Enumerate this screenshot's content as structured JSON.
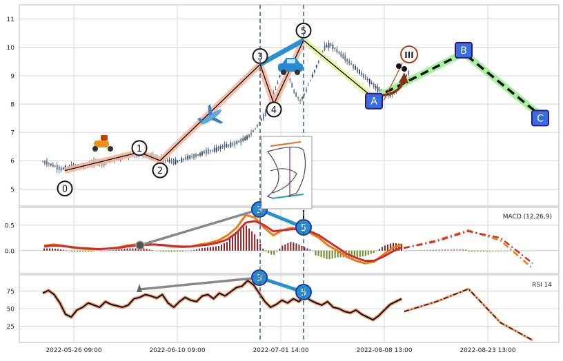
{
  "chart_data": [
    {
      "type": "candlestick",
      "panel": "price",
      "ylim": [
        4.4,
        11.5
      ],
      "y_ticks": [
        5,
        6,
        7,
        8,
        9,
        10,
        11
      ],
      "x_tick_labels": [
        "2022-05-26 09:00",
        "2022-06-10 09:00",
        "2022-07-01 14:00",
        "2022-08-08 13:00",
        "2022-08-23 13:00"
      ],
      "wave_labels": [
        "0",
        "1",
        "2",
        "3",
        "4",
        "5",
        "A",
        "B",
        "C"
      ],
      "wave_points": [
        5.65,
        6.3,
        6.0,
        9.4,
        8.0,
        10.25,
        8.2,
        9.8,
        7.6
      ],
      "roman_label": "III",
      "icons": [
        "scooter-icon",
        "airplane-icon",
        "car-icon"
      ],
      "price_approx": [
        5.95,
        5.9,
        5.8,
        5.7,
        5.75,
        5.8,
        5.85,
        5.8,
        5.9,
        5.95,
        5.9,
        6.0,
        6.05,
        6.1,
        6.15,
        6.2,
        6.25,
        6.2,
        6.15,
        6.1,
        6.05,
        6.0,
        5.95,
        6.0,
        6.1,
        6.15,
        6.2,
        6.3,
        6.35,
        6.4,
        6.5,
        6.55,
        6.6,
        6.7,
        6.8,
        7.0,
        7.3,
        7.6,
        8.0,
        8.6,
        9.3,
        9.0,
        8.4,
        8.1,
        8.5,
        9.0,
        9.5,
        10.0,
        10.1,
        9.9,
        9.7,
        9.5,
        9.3,
        9.1,
        8.9,
        8.7,
        8.5,
        8.4,
        8.3,
        8.5,
        8.8,
        9.1
      ]
    },
    {
      "type": "line",
      "panel": "macd",
      "indicator_label": "MACD (12,26,9)",
      "ylim": [
        -0.45,
        0.85
      ],
      "y_ticks": [
        "0.5",
        "0.0"
      ],
      "y_tick_values": [
        0.5,
        0.0
      ],
      "series": [
        {
          "values": [
            0.1,
            0.12,
            0.1,
            0.06,
            0.04,
            0.03,
            0.03,
            0.04,
            0.06,
            0.1,
            0.12,
            0.13,
            0.12,
            0.1,
            0.08,
            0.07,
            0.08,
            0.12,
            0.15,
            0.2,
            0.3,
            0.45,
            0.7,
            0.65,
            0.45,
            0.3,
            0.4,
            0.45,
            0.42,
            0.35,
            0.25,
            0.1,
            0.0,
            -0.12,
            -0.2,
            -0.25,
            -0.22,
            -0.08,
            0.05,
            0.12
          ]
        },
        {
          "values": [
            0.08,
            0.1,
            0.09,
            0.07,
            0.05,
            0.04,
            0.03,
            0.04,
            0.05,
            0.08,
            0.1,
            0.11,
            0.12,
            0.11,
            0.09,
            0.08,
            0.08,
            0.1,
            0.12,
            0.16,
            0.22,
            0.35,
            0.55,
            0.58,
            0.5,
            0.38,
            0.4,
            0.42,
            0.42,
            0.38,
            0.3,
            0.18,
            0.06,
            -0.06,
            -0.14,
            -0.2,
            -0.2,
            -0.12,
            -0.02,
            0.06
          ]
        }
      ],
      "projection": [
        {
          "values": [
            0.05,
            0.2,
            0.4,
            0.2,
            -0.35
          ]
        },
        {
          "values": [
            0.05,
            0.18,
            0.38,
            0.25,
            -0.25
          ]
        }
      ]
    },
    {
      "type": "line",
      "panel": "rsi",
      "indicator_label": "RSI 14",
      "ylim": [
        2,
        98
      ],
      "y_ticks": [
        "75",
        "50",
        "25"
      ],
      "y_tick_values": [
        75,
        50,
        25
      ],
      "series": [
        {
          "values": [
            72,
            76,
            70,
            58,
            42,
            38,
            48,
            52,
            58,
            55,
            52,
            60,
            56,
            54,
            52,
            55,
            64,
            66,
            70,
            68,
            65,
            70,
            58,
            52,
            60,
            66,
            62,
            60,
            68,
            70,
            64,
            72,
            68,
            74,
            80,
            82,
            90,
            84,
            72,
            60,
            52,
            56,
            62,
            58,
            64,
            60,
            68,
            62,
            58,
            55,
            60,
            52,
            50,
            46,
            44,
            48,
            42,
            38,
            34,
            40,
            48,
            56,
            60,
            64
          ]
        }
      ],
      "projection": {
        "values": [
          46,
          60,
          78,
          30,
          5
        ]
      }
    }
  ]
}
